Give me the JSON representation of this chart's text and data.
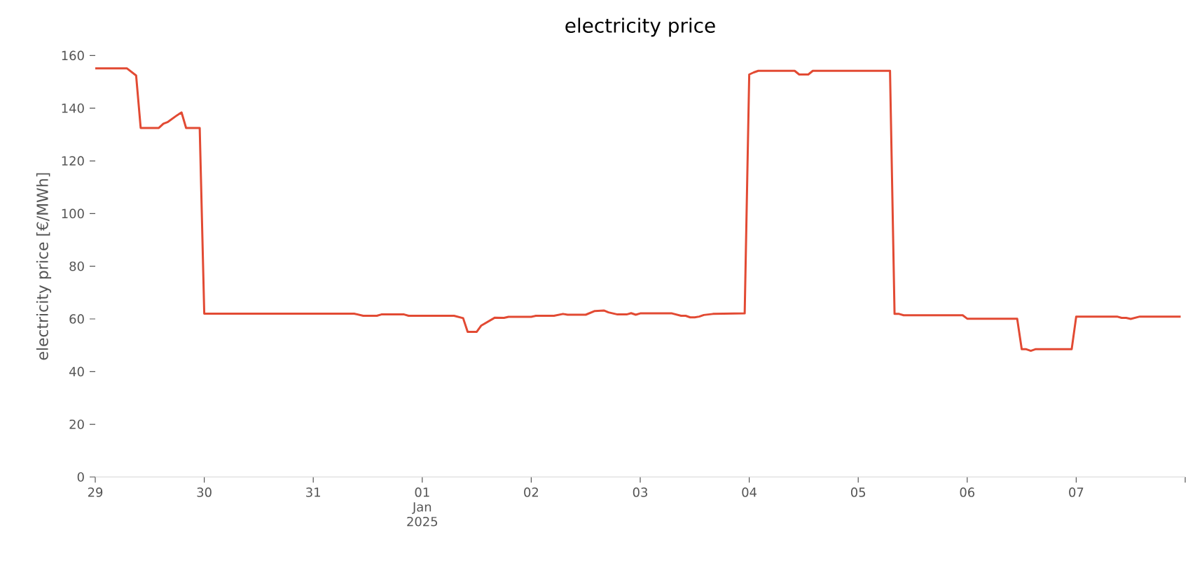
{
  "chart_data": {
    "type": "line",
    "title": "electricity price",
    "ylabel": "electricity price [€/MWh]",
    "color": "#e24a33",
    "x": [
      "2024-12-29T00:00",
      "2024-12-29T07:00",
      "2024-12-29T09:00",
      "2024-12-29T10:00",
      "2024-12-29T14:00",
      "2024-12-29T15:00",
      "2024-12-29T16:00",
      "2024-12-29T18:00",
      "2024-12-29T19:00",
      "2024-12-29T20:00",
      "2024-12-29T23:00",
      "2024-12-30T00:00",
      "2024-12-31T09:00",
      "2024-12-31T11:00",
      "2024-12-31T14:00",
      "2024-12-31T15:00",
      "2024-12-31T20:00",
      "2024-12-31T21:00",
      "2025-01-01T07:00",
      "2025-01-01T09:00",
      "2025-01-01T10:00",
      "2025-01-01T12:00",
      "2025-01-01T13:00",
      "2025-01-01T16:00",
      "2025-01-01T18:00",
      "2025-01-01T19:00",
      "2025-01-02T00:00",
      "2025-01-02T01:00",
      "2025-01-02T05:00",
      "2025-01-02T07:00",
      "2025-01-02T08:00",
      "2025-01-02T12:00",
      "2025-01-02T14:00",
      "2025-01-02T16:00",
      "2025-01-02T17:00",
      "2025-01-02T19:00",
      "2025-01-02T21:00",
      "2025-01-02T22:00",
      "2025-01-02T23:00",
      "2025-01-03T00:00",
      "2025-01-03T07:00",
      "2025-01-03T09:00",
      "2025-01-03T10:00",
      "2025-01-03T11:00",
      "2025-01-03T12:00",
      "2025-01-03T13:00",
      "2025-01-03T14:00",
      "2025-01-03T16:00",
      "2025-01-03T23:00",
      "2025-01-04T00:00",
      "2025-01-04T01:00",
      "2025-01-04T02:00",
      "2025-01-04T10:00",
      "2025-01-04T11:00",
      "2025-01-04T13:00",
      "2025-01-04T14:00",
      "2025-01-05T07:00",
      "2025-01-05T08:00",
      "2025-01-05T09:00",
      "2025-01-05T10:00",
      "2025-01-05T23:00",
      "2025-01-06T00:00",
      "2025-01-06T11:00",
      "2025-01-06T12:00",
      "2025-01-06T13:00",
      "2025-01-06T14:00",
      "2025-01-06T15:00",
      "2025-01-06T23:00",
      "2025-01-07T00:00",
      "2025-01-07T09:00",
      "2025-01-07T10:00",
      "2025-01-07T11:00",
      "2025-01-07T12:00",
      "2025-01-07T14:00",
      "2025-01-07T23:00"
    ],
    "values": [
      155.1,
      155.1,
      152.4,
      132.5,
      132.5,
      134.1,
      134.8,
      137.3,
      138.4,
      132.5,
      132.5,
      62.0,
      62.0,
      61.2,
      61.2,
      61.7,
      61.7,
      61.2,
      61.2,
      60.3,
      55.1,
      55.1,
      57.5,
      60.5,
      60.4,
      60.8,
      60.8,
      61.2,
      61.2,
      61.9,
      61.6,
      61.6,
      63.0,
      63.2,
      62.5,
      61.7,
      61.7,
      62.2,
      61.6,
      62.1,
      62.1,
      61.2,
      61.2,
      60.6,
      60.6,
      60.9,
      61.5,
      61.9,
      62.1,
      152.8,
      153.6,
      154.2,
      154.2,
      152.8,
      152.8,
      154.2,
      154.2,
      61.9,
      61.9,
      61.4,
      61.4,
      60.1,
      60.1,
      48.5,
      48.5,
      47.9,
      48.5,
      48.5,
      60.9,
      60.9,
      60.4,
      60.4,
      60.0,
      60.9,
      60.9
    ],
    "xlim": [
      "2024-12-29",
      "2025-01-08"
    ],
    "ylim": [
      0,
      160
    ],
    "xticks": [
      {
        "value": "2024-12-29",
        "label": "29"
      },
      {
        "value": "2024-12-30",
        "label": "30"
      },
      {
        "value": "2024-12-31",
        "label": "31"
      },
      {
        "value": "2025-01-01",
        "label": "01 Jan 2025"
      },
      {
        "value": "2025-01-02",
        "label": "02"
      },
      {
        "value": "2025-01-03",
        "label": "03"
      },
      {
        "value": "2025-01-04",
        "label": "04"
      },
      {
        "value": "2025-01-05",
        "label": "05"
      },
      {
        "value": "2025-01-06",
        "label": "06"
      },
      {
        "value": "2025-01-07",
        "label": "07"
      },
      {
        "value": "2025-01-08",
        "label": null
      }
    ],
    "yticks": [
      0,
      20,
      40,
      60,
      80,
      100,
      120,
      140,
      160
    ]
  }
}
